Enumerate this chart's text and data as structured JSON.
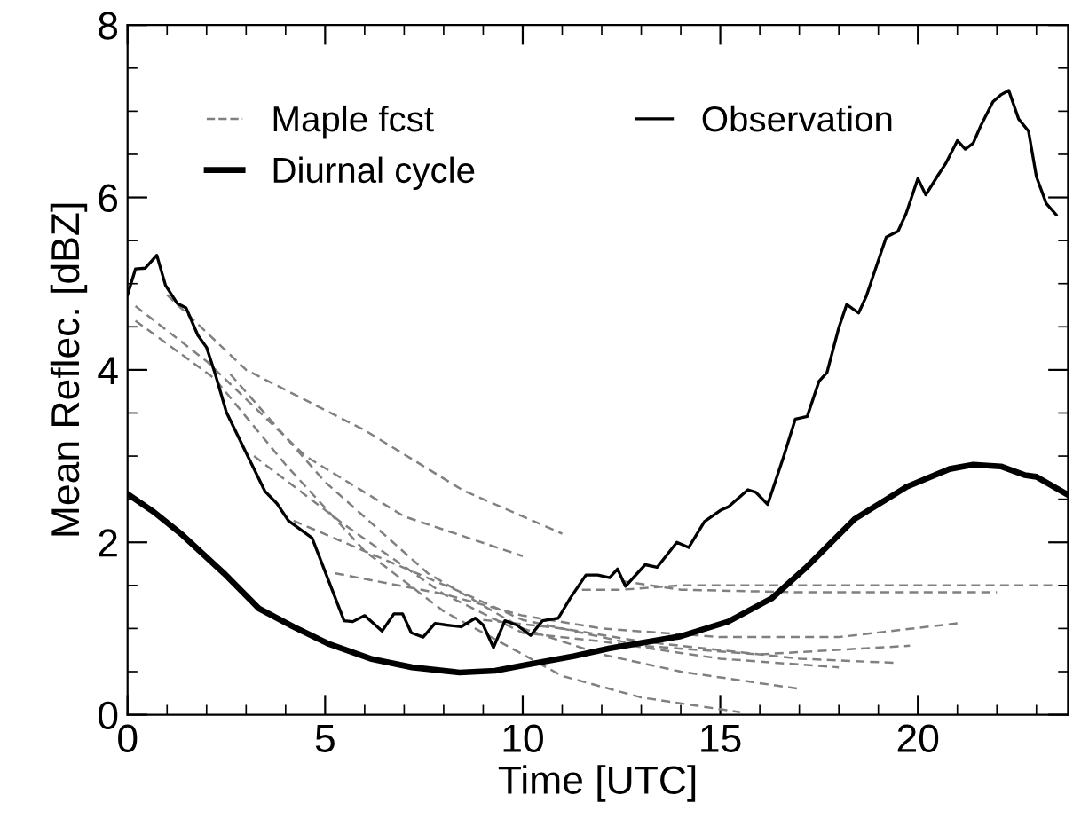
{
  "chart_data": {
    "type": "line",
    "xlabel": "Time [UTC]",
    "ylabel": "Mean Reflec. [dBZ]",
    "xlim": [
      0,
      23.8
    ],
    "xticks": [
      0,
      5,
      10,
      15,
      20
    ],
    "ylim": [
      0,
      8
    ],
    "yticks": [
      0,
      2,
      4,
      6,
      8
    ],
    "grid": false,
    "legend": "top left",
    "series": [
      {
        "name": "Maple fcst",
        "color": "#808080",
        "line_style": "dashed",
        "x": [
          1.0,
          3,
          6,
          8.5,
          11
        ],
        "values": [
          4.87,
          4.0,
          3.3,
          2.6,
          2.1
        ]
      },
      {
        "color": "#808080",
        "line_style": "dashed",
        "x": [
          0.2,
          2,
          4.5,
          7,
          10
        ],
        "values": [
          4.74,
          4.1,
          3.0,
          2.3,
          1.84
        ]
      },
      {
        "color": "#808080",
        "line_style": "dashed",
        "x": [
          0.2,
          2.2,
          4,
          6,
          8,
          11,
          13,
          15.5
        ],
        "values": [
          4.57,
          3.9,
          2.9,
          1.9,
          1.2,
          0.45,
          0.2,
          0.03
        ]
      },
      {
        "color": "#808080",
        "line_style": "dashed",
        "x": [
          2.6,
          5,
          7.6,
          10,
          12,
          14,
          17
        ],
        "values": [
          3.95,
          2.7,
          1.64,
          1.0,
          0.7,
          0.5,
          0.3
        ]
      },
      {
        "color": "#808080",
        "line_style": "dashed",
        "x": [
          3.2,
          5.5,
          8,
          10,
          12,
          15,
          18
        ],
        "values": [
          3.0,
          2.2,
          1.4,
          0.95,
          0.85,
          0.65,
          0.55
        ]
      },
      {
        "color": "#808080",
        "line_style": "dashed",
        "x": [
          4.2,
          6.5,
          8.4,
          10,
          13,
          16,
          19.8
        ],
        "values": [
          2.25,
          1.8,
          1.43,
          1.1,
          0.8,
          0.7,
          0.8
        ]
      },
      {
        "color": "#808080",
        "line_style": "dashed",
        "x": [
          5.26,
          8,
          10,
          12,
          15,
          18,
          21
        ],
        "values": [
          1.64,
          1.4,
          1.15,
          1.0,
          0.9,
          0.9,
          1.06
        ]
      },
      {
        "color": "#808080",
        "line_style": "dashed",
        "x": [
          9,
          11,
          13,
          15,
          17,
          19.5
        ],
        "values": [
          1.1,
          1.0,
          0.85,
          0.75,
          0.65,
          0.6
        ]
      },
      {
        "color": "#808080",
        "line_style": "dashed",
        "x": [
          11.5,
          12.5,
          14,
          17,
          20,
          23.5
        ],
        "values": [
          1.45,
          1.45,
          1.5,
          1.5,
          1.5,
          1.5
        ]
      },
      {
        "color": "#808080",
        "line_style": "dashed",
        "x": [
          12.5,
          14,
          17,
          20,
          22
        ],
        "values": [
          1.55,
          1.45,
          1.42,
          1.42,
          1.42
        ]
      },
      {
        "name": "Observation",
        "color": "#000000",
        "line_style": "solid",
        "x": [
          0,
          0.2,
          0.45,
          0.74,
          0.96,
          1.26,
          1.48,
          1.78,
          2.0,
          2.22,
          2.5,
          3.04,
          3.48,
          3.78,
          4.07,
          4.67,
          5.48,
          5.7,
          6.0,
          6.44,
          6.74,
          6.96,
          7.18,
          7.48,
          7.78,
          8.07,
          8.44,
          8.8,
          9.0,
          9.26,
          9.55,
          9.85,
          10.2,
          10.5,
          10.9,
          11.2,
          11.6,
          11.9,
          12.2,
          12.4,
          12.6,
          13.1,
          13.4,
          13.9,
          14.2,
          14.6,
          15.0,
          15.2,
          15.7,
          15.9,
          16.2,
          16.6,
          16.9,
          17.2,
          17.5,
          17.7,
          18.0,
          18.2,
          18.5,
          18.7,
          19.0,
          19.2,
          19.5,
          19.7,
          20.0,
          20.2,
          20.5,
          20.7,
          21.0,
          21.2,
          21.4,
          21.6,
          21.9,
          22.1,
          22.3,
          22.55,
          22.8,
          23.0,
          23.25,
          23.5
        ],
        "values": [
          4.87,
          5.17,
          5.18,
          5.33,
          4.98,
          4.77,
          4.72,
          4.4,
          4.26,
          3.95,
          3.51,
          3.0,
          2.59,
          2.45,
          2.25,
          2.05,
          1.09,
          1.08,
          1.15,
          0.97,
          1.17,
          1.17,
          0.95,
          0.9,
          1.06,
          1.04,
          1.02,
          1.12,
          1.04,
          0.78,
          1.09,
          1.04,
          0.92,
          1.09,
          1.12,
          1.35,
          1.62,
          1.62,
          1.59,
          1.69,
          1.49,
          1.74,
          1.71,
          2.0,
          1.94,
          2.24,
          2.37,
          2.41,
          2.61,
          2.58,
          2.44,
          2.99,
          3.43,
          3.46,
          3.87,
          3.97,
          4.49,
          4.76,
          4.66,
          4.86,
          5.27,
          5.54,
          5.61,
          5.81,
          6.22,
          6.03,
          6.25,
          6.39,
          6.66,
          6.56,
          6.63,
          6.84,
          7.11,
          7.19,
          7.24,
          6.91,
          6.77,
          6.24,
          5.93,
          5.8
        ]
      },
      {
        "name": "Diurnal cycle",
        "color": "#000000",
        "line_style": "solid",
        "x": [
          0,
          0.67,
          1.4,
          2.44,
          3.33,
          4.2,
          5.1,
          6.15,
          7.2,
          8.4,
          9.3,
          10.1,
          11.3,
          12.2,
          14.0,
          15.2,
          16.3,
          17.2,
          18.4,
          19.7,
          20.8,
          21.4,
          22.1,
          22.7,
          23.0,
          23.8
        ],
        "values": [
          2.56,
          2.35,
          2.08,
          1.64,
          1.23,
          1.02,
          0.82,
          0.65,
          0.55,
          0.49,
          0.51,
          0.58,
          0.68,
          0.77,
          0.91,
          1.08,
          1.35,
          1.72,
          2.27,
          2.64,
          2.85,
          2.9,
          2.88,
          2.78,
          2.76,
          2.55
        ]
      }
    ]
  }
}
